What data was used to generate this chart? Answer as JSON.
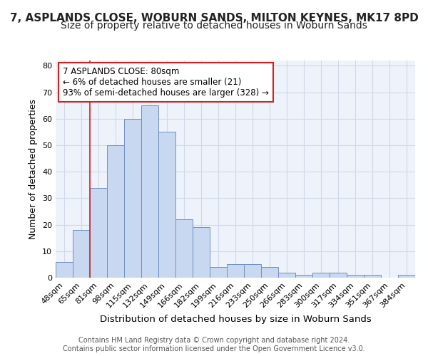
{
  "title": "7, ASPLANDS CLOSE, WOBURN SANDS, MILTON KEYNES, MK17 8PD",
  "subtitle": "Size of property relative to detached houses in Woburn Sands",
  "xlabel": "Distribution of detached houses by size in Woburn Sands",
  "ylabel": "Number of detached properties",
  "categories": [
    "48sqm",
    "65sqm",
    "81sqm",
    "98sqm",
    "115sqm",
    "132sqm",
    "149sqm",
    "166sqm",
    "182sqm",
    "199sqm",
    "216sqm",
    "233sqm",
    "250sqm",
    "266sqm",
    "283sqm",
    "300sqm",
    "317sqm",
    "334sqm",
    "351sqm",
    "367sqm",
    "384sqm"
  ],
  "values": [
    6,
    18,
    34,
    50,
    60,
    65,
    55,
    22,
    19,
    4,
    5,
    5,
    4,
    2,
    1,
    2,
    2,
    1,
    1,
    0,
    1
  ],
  "bar_color": "#c8d8f0",
  "bar_edge_color": "#7090c0",
  "grid_color": "#d0d8e8",
  "bg_color": "#eef2fa",
  "vline_x_index": 2,
  "vline_color": "#cc2222",
  "annotation_text": "7 ASPLANDS CLOSE: 80sqm\n← 6% of detached houses are smaller (21)\n93% of semi-detached houses are larger (328) →",
  "annotation_box_color": "#ffffff",
  "annotation_box_edge": "#cc2222",
  "ylim": [
    0,
    82
  ],
  "yticks": [
    0,
    10,
    20,
    30,
    40,
    50,
    60,
    70,
    80
  ],
  "footer": "Contains HM Land Registry data © Crown copyright and database right 2024.\nContains public sector information licensed under the Open Government Licence v3.0.",
  "title_fontsize": 11,
  "subtitle_fontsize": 10,
  "xlabel_fontsize": 9.5,
  "ylabel_fontsize": 9,
  "tick_fontsize": 8,
  "annotation_fontsize": 8.5,
  "footer_fontsize": 7
}
